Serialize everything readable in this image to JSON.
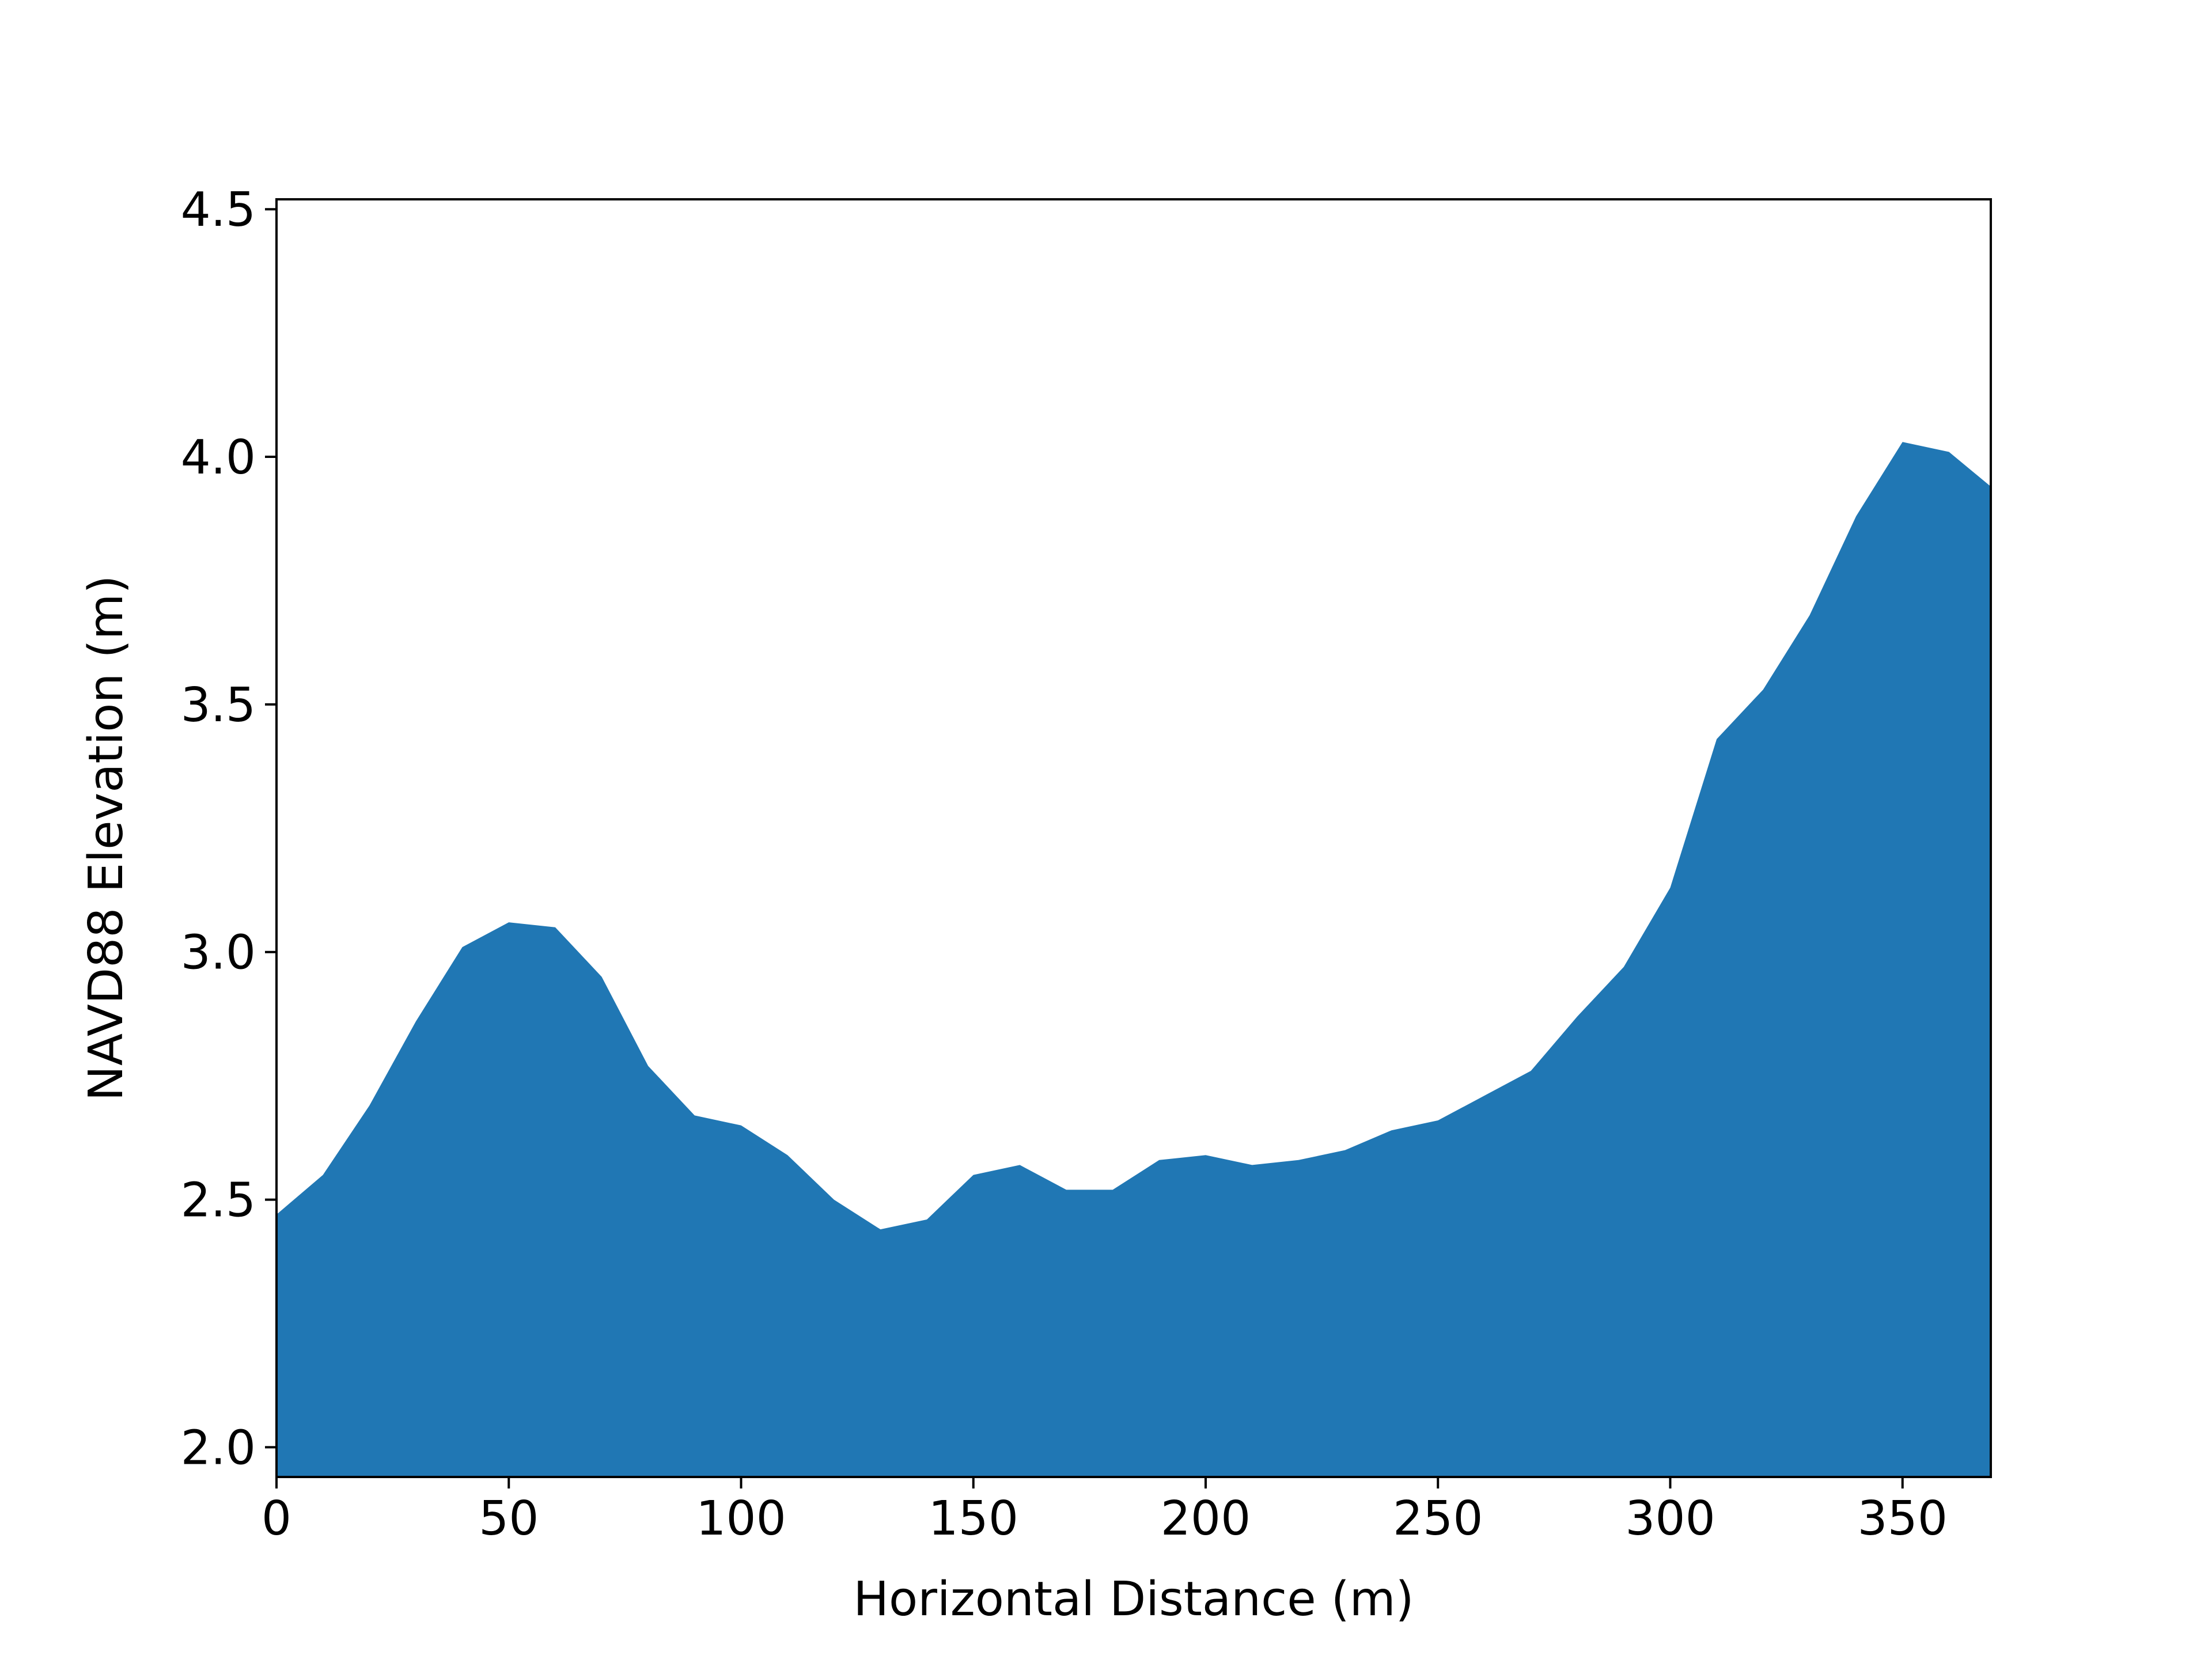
{
  "chart_data": {
    "type": "area",
    "title": "",
    "xlabel": "Horizontal Distance (m)",
    "ylabel": "NAVD88 Elevation (m)",
    "xlim": [
      0,
      369
    ],
    "ylim": [
      1.94,
      4.52
    ],
    "xticks": [
      0,
      50,
      100,
      150,
      200,
      250,
      300,
      350
    ],
    "yticks": [
      2.0,
      2.5,
      3.0,
      3.5,
      4.0,
      4.5
    ],
    "xtick_labels": [
      "0",
      "50",
      "100",
      "150",
      "200",
      "250",
      "300",
      "350"
    ],
    "ytick_labels": [
      "2.0",
      "2.5",
      "3.0",
      "3.5",
      "4.0",
      "4.5"
    ],
    "grid": false,
    "series": [
      {
        "color": "#2077b4",
        "x": [
          0,
          10,
          20,
          30,
          40,
          50,
          60,
          70,
          80,
          90,
          100,
          110,
          120,
          130,
          140,
          150,
          160,
          170,
          180,
          190,
          200,
          210,
          220,
          230,
          240,
          250,
          260,
          270,
          280,
          290,
          300,
          310,
          320,
          330,
          340,
          350,
          360,
          369
        ],
        "y": [
          2.47,
          2.55,
          2.69,
          2.86,
          3.01,
          3.06,
          3.05,
          2.95,
          2.77,
          2.67,
          2.65,
          2.59,
          2.5,
          2.44,
          2.46,
          2.55,
          2.57,
          2.52,
          2.52,
          2.58,
          2.59,
          2.57,
          2.58,
          2.6,
          2.64,
          2.66,
          2.71,
          2.76,
          2.87,
          2.97,
          3.13,
          3.43,
          3.53,
          3.68,
          3.88,
          4.03,
          4.01,
          3.94
        ]
      }
    ]
  }
}
